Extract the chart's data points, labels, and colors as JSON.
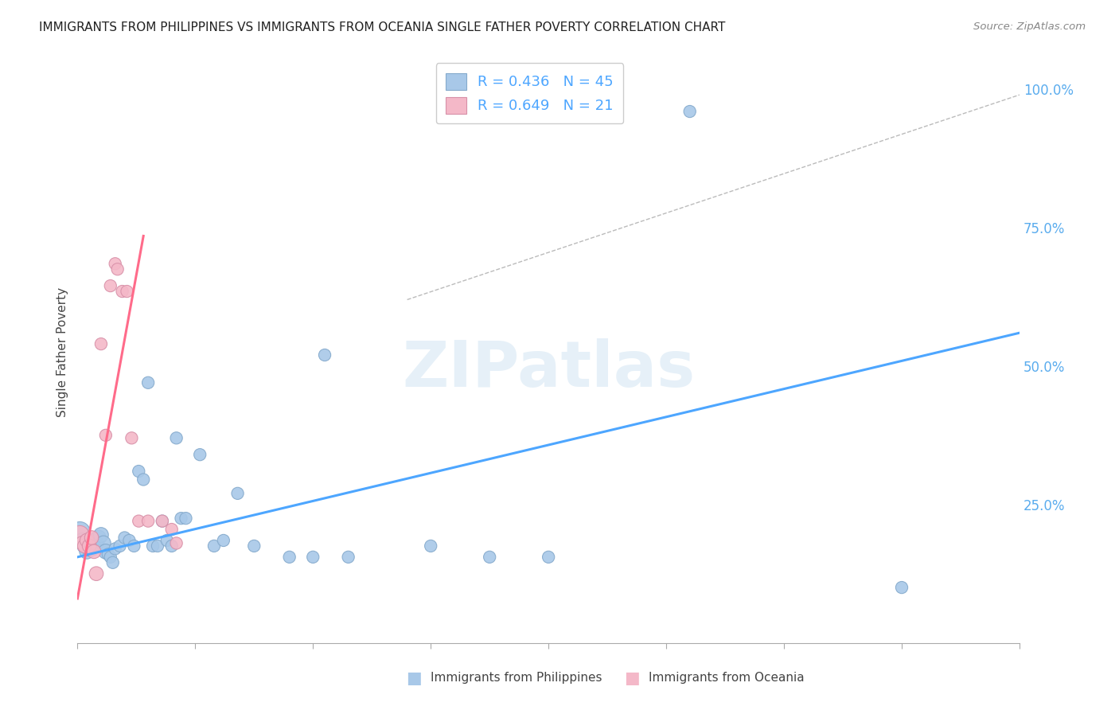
{
  "title": "IMMIGRANTS FROM PHILIPPINES VS IMMIGRANTS FROM OCEANIA SINGLE FATHER POVERTY CORRELATION CHART",
  "source": "Source: ZipAtlas.com",
  "ylabel": "Single Father Poverty",
  "legend_label1": "Immigrants from Philippines",
  "legend_label2": "Immigrants from Oceania",
  "R1": 0.436,
  "N1": 45,
  "R2": 0.649,
  "N2": 21,
  "watermark": "ZIPatlas",
  "blue_color": "#a8c8e8",
  "pink_color": "#f4b8c8",
  "blue_line_color": "#4da6ff",
  "pink_line_color": "#ff6b8a",
  "blue_scatter": [
    [
      0.001,
      0.2
    ],
    [
      0.002,
      0.185
    ],
    [
      0.003,
      0.175
    ],
    [
      0.004,
      0.165
    ],
    [
      0.005,
      0.17
    ],
    [
      0.006,
      0.17
    ],
    [
      0.007,
      0.185
    ],
    [
      0.008,
      0.18
    ],
    [
      0.009,
      0.19
    ],
    [
      0.01,
      0.195
    ],
    [
      0.011,
      0.18
    ],
    [
      0.012,
      0.165
    ],
    [
      0.013,
      0.16
    ],
    [
      0.014,
      0.155
    ],
    [
      0.015,
      0.145
    ],
    [
      0.016,
      0.17
    ],
    [
      0.018,
      0.175
    ],
    [
      0.02,
      0.19
    ],
    [
      0.022,
      0.185
    ],
    [
      0.024,
      0.175
    ],
    [
      0.026,
      0.31
    ],
    [
      0.028,
      0.295
    ],
    [
      0.03,
      0.47
    ],
    [
      0.032,
      0.175
    ],
    [
      0.034,
      0.175
    ],
    [
      0.036,
      0.22
    ],
    [
      0.038,
      0.185
    ],
    [
      0.04,
      0.175
    ],
    [
      0.042,
      0.37
    ],
    [
      0.044,
      0.225
    ],
    [
      0.046,
      0.225
    ],
    [
      0.052,
      0.34
    ],
    [
      0.058,
      0.175
    ],
    [
      0.062,
      0.185
    ],
    [
      0.068,
      0.27
    ],
    [
      0.075,
      0.175
    ],
    [
      0.09,
      0.155
    ],
    [
      0.1,
      0.155
    ],
    [
      0.105,
      0.52
    ],
    [
      0.115,
      0.155
    ],
    [
      0.15,
      0.175
    ],
    [
      0.175,
      0.155
    ],
    [
      0.2,
      0.155
    ],
    [
      0.26,
      0.96
    ],
    [
      0.35,
      0.1
    ]
  ],
  "pink_scatter": [
    [
      0.001,
      0.195
    ],
    [
      0.002,
      0.18
    ],
    [
      0.003,
      0.175
    ],
    [
      0.004,
      0.185
    ],
    [
      0.005,
      0.175
    ],
    [
      0.006,
      0.19
    ],
    [
      0.007,
      0.165
    ],
    [
      0.008,
      0.125
    ],
    [
      0.01,
      0.54
    ],
    [
      0.012,
      0.375
    ],
    [
      0.014,
      0.645
    ],
    [
      0.016,
      0.685
    ],
    [
      0.017,
      0.675
    ],
    [
      0.019,
      0.635
    ],
    [
      0.021,
      0.635
    ],
    [
      0.023,
      0.37
    ],
    [
      0.026,
      0.22
    ],
    [
      0.03,
      0.22
    ],
    [
      0.036,
      0.22
    ],
    [
      0.04,
      0.205
    ],
    [
      0.042,
      0.18
    ]
  ],
  "blue_line": [
    [
      0.0,
      0.155
    ],
    [
      0.4,
      0.56
    ]
  ],
  "pink_line": [
    [
      0.0,
      0.08
    ],
    [
      0.028,
      0.735
    ]
  ],
  "diag_line": [
    [
      0.14,
      0.62
    ],
    [
      0.4,
      0.99
    ]
  ],
  "xlim": [
    0.0,
    0.4
  ],
  "ylim": [
    0.0,
    1.05
  ],
  "yticks": [
    0.25,
    0.5,
    0.75,
    1.0
  ],
  "ytick_labels": [
    "25.0%",
    "50.0%",
    "75.0%",
    "100.0%"
  ]
}
